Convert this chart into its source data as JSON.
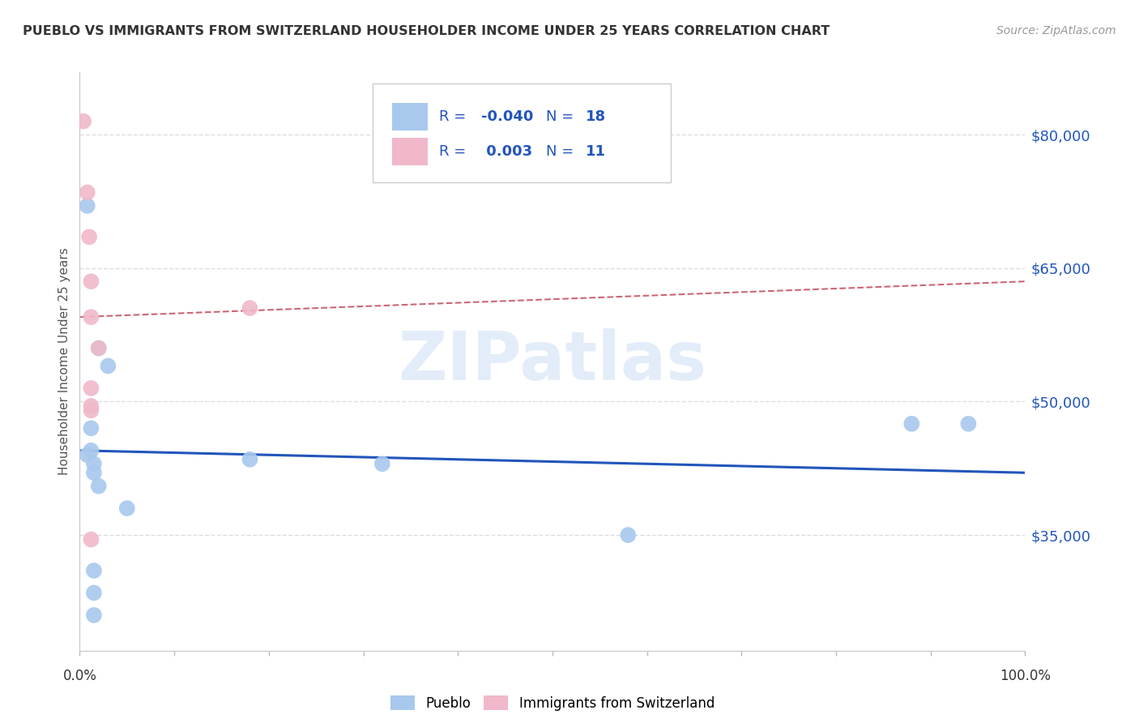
{
  "title": "PUEBLO VS IMMIGRANTS FROM SWITZERLAND HOUSEHOLDER INCOME UNDER 25 YEARS CORRELATION CHART",
  "source": "Source: ZipAtlas.com",
  "ylabel": "Householder Income Under 25 years",
  "ytick_labels": [
    "$35,000",
    "$50,000",
    "$65,000",
    "$80,000"
  ],
  "ytick_values": [
    35000,
    50000,
    65000,
    80000
  ],
  "ymin": 22000,
  "ymax": 87000,
  "xmin": 0.0,
  "xmax": 1.0,
  "legend_label1": "Pueblo",
  "legend_label2": "Immigrants from Switzerland",
  "blue_R": "-0.040",
  "blue_N": "18",
  "pink_R": "0.003",
  "pink_N": "11",
  "blue_color": "#A8C8EE",
  "pink_color": "#F0B8C8",
  "blue_line_color": "#2255BB",
  "pink_line_color": "#CC6677",
  "blue_points_x": [
    0.008,
    0.02,
    0.03,
    0.012,
    0.012,
    0.008,
    0.015,
    0.015,
    0.02,
    0.05,
    0.18,
    0.32,
    0.58,
    0.88,
    0.94,
    0.015,
    0.015,
    0.015
  ],
  "blue_points_y": [
    72000,
    56000,
    54000,
    47000,
    44500,
    44000,
    43000,
    42000,
    40500,
    38000,
    43500,
    43000,
    35000,
    47500,
    47500,
    31000,
    28500,
    26000
  ],
  "pink_points_x": [
    0.004,
    0.008,
    0.01,
    0.012,
    0.012,
    0.012,
    0.012,
    0.012,
    0.012,
    0.02,
    0.18
  ],
  "pink_points_y": [
    81500,
    73500,
    68500,
    63500,
    59500,
    51500,
    49500,
    49000,
    34500,
    56000,
    60500
  ],
  "blue_line_x": [
    0.0,
    1.0
  ],
  "blue_line_y": [
    44500,
    42000
  ],
  "pink_line_x": [
    0.0,
    1.0
  ],
  "pink_line_y": [
    59500,
    63500
  ],
  "xtick_positions": [
    0.0,
    0.1,
    0.2,
    0.3,
    0.4,
    0.5,
    0.6,
    0.7,
    0.8,
    0.9,
    1.0
  ],
  "watermark": "ZIPatlas",
  "background_color": "#FFFFFF",
  "grid_color": "#DDDDDD",
  "legend_text_color": "#2255BB",
  "title_color": "#333333",
  "ylabel_color": "#555555"
}
